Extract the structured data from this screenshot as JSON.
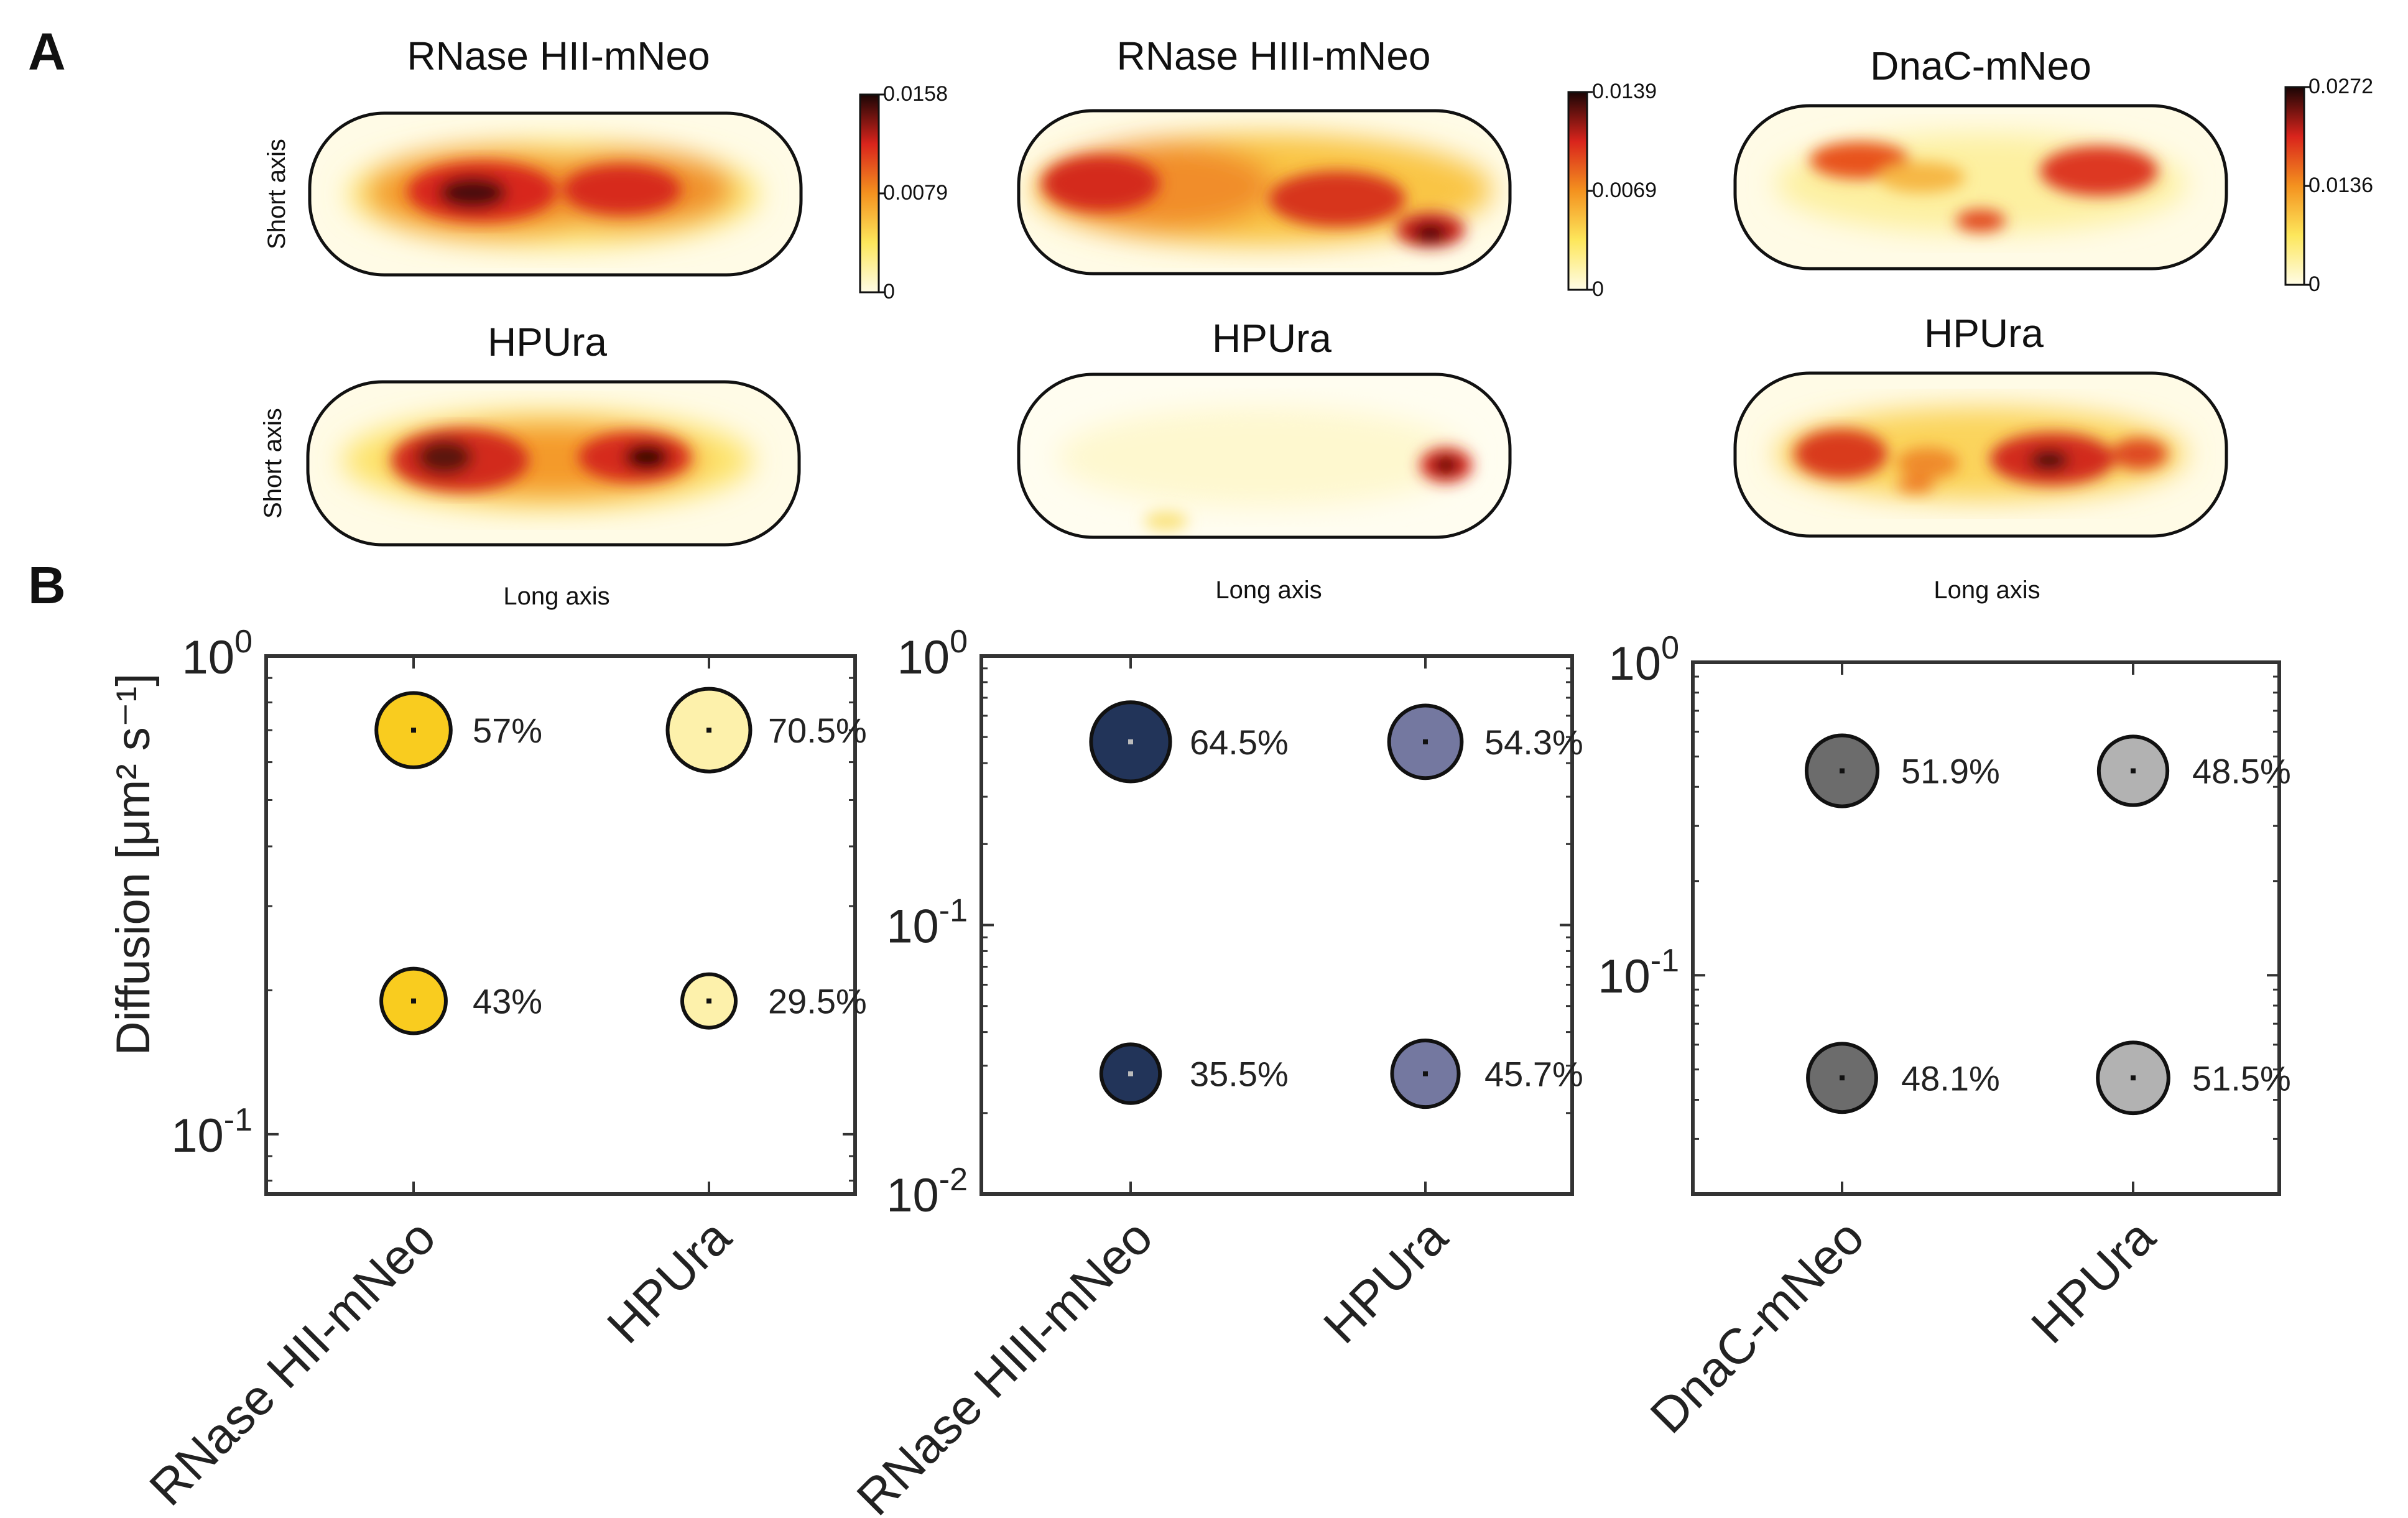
{
  "panels": {
    "a": "A",
    "b": "B"
  },
  "heatmap_labels": {
    "short_axis": "Short axis",
    "long_axis": "Long axis"
  },
  "heatmap_titles": {
    "top": [
      "RNase HII-mNeo",
      "RNase HIII-mNeo",
      "DnaC-mNeo"
    ],
    "bottom": [
      "HPUra",
      "HPUra",
      "HPUra"
    ]
  },
  "colorbars": [
    {
      "max": "0.0158",
      "mid": "0.0079",
      "min": "0"
    },
    {
      "max": "0.0139",
      "mid": "0.0069",
      "min": "0"
    },
    {
      "max": "0.0272",
      "mid": "0.0136",
      "min": "0"
    }
  ],
  "colors": {
    "heat_low": "#fffbe0",
    "heat_yellow": "#fde36a",
    "heat_orange": "#f59a2c",
    "heat_red": "#d8261e",
    "heat_dark": "#2a0d0d",
    "rnase_hii_untreated": "#f9cc1f",
    "rnase_hii_hpura": "#fdf1ab",
    "rnase_hiii_untreated": "#223459",
    "rnase_hiii_hpura": "#7478a0",
    "dnac_untreated": "#6c6c6c",
    "dnac_hpura": "#b2b2b2"
  },
  "chart_data": [
    {
      "type": "scatter",
      "ylabel": "Diffusion [μm² s⁻¹]",
      "yscale": "log",
      "ylim": [
        0.075,
        1.0
      ],
      "yticks": [
        {
          "value": 1.0,
          "base": "10",
          "exp": "0"
        },
        {
          "value": 0.1,
          "base": "10",
          "exp": "-1"
        }
      ],
      "categories": [
        "RNase HII-mNeo",
        "HPUra"
      ],
      "points": [
        {
          "category": "RNase HII-mNeo",
          "y": 0.7,
          "fraction": 57,
          "label": "57%",
          "color": "#f9cc1f"
        },
        {
          "category": "RNase HII-mNeo",
          "y": 0.19,
          "fraction": 43,
          "label": "43%",
          "color": "#f9cc1f"
        },
        {
          "category": "HPUra",
          "y": 0.7,
          "fraction": 70.5,
          "label": "70.5%",
          "color": "#fdf1ab"
        },
        {
          "category": "HPUra",
          "y": 0.19,
          "fraction": 29.5,
          "label": "29.5%",
          "color": "#fdf1ab"
        }
      ]
    },
    {
      "type": "scatter",
      "yscale": "log",
      "ylim": [
        0.01,
        1.0
      ],
      "yticks": [
        {
          "value": 1.0,
          "base": "10",
          "exp": "0"
        },
        {
          "value": 0.1,
          "base": "10",
          "exp": "-1"
        },
        {
          "value": 0.01,
          "base": "10",
          "exp": "-2"
        }
      ],
      "categories": [
        "RNase HIII-mNeo",
        "HPUra"
      ],
      "points": [
        {
          "category": "RNase HIII-mNeo",
          "y": 0.48,
          "fraction": 64.5,
          "label": "64.5%",
          "color": "#223459"
        },
        {
          "category": "RNase HIII-mNeo",
          "y": 0.028,
          "fraction": 35.5,
          "label": "35.5%",
          "color": "#223459"
        },
        {
          "category": "HPUra",
          "y": 0.48,
          "fraction": 54.3,
          "label": "54.3%",
          "color": "#7478a0"
        },
        {
          "category": "HPUra",
          "y": 0.028,
          "fraction": 45.7,
          "label": "45.7%",
          "color": "#7478a0"
        }
      ]
    },
    {
      "type": "scatter",
      "yscale": "log",
      "ylim": [
        0.02,
        1.0
      ],
      "yticks": [
        {
          "value": 1.0,
          "base": "10",
          "exp": "0"
        },
        {
          "value": 0.1,
          "base": "10",
          "exp": "-1"
        }
      ],
      "categories": [
        "DnaC-mNeo",
        "HPUra"
      ],
      "points": [
        {
          "category": "DnaC-mNeo",
          "y": 0.45,
          "fraction": 51.9,
          "label": "51.9%",
          "color": "#6c6c6c"
        },
        {
          "category": "DnaC-mNeo",
          "y": 0.047,
          "fraction": 48.1,
          "label": "48.1%",
          "color": "#6c6c6c"
        },
        {
          "category": "HPUra",
          "y": 0.45,
          "fraction": 48.5,
          "label": "48.5%",
          "color": "#b2b2b2"
        },
        {
          "category": "HPUra",
          "y": 0.047,
          "fraction": 51.5,
          "label": "51.5%",
          "color": "#b2b2b2"
        }
      ]
    }
  ]
}
